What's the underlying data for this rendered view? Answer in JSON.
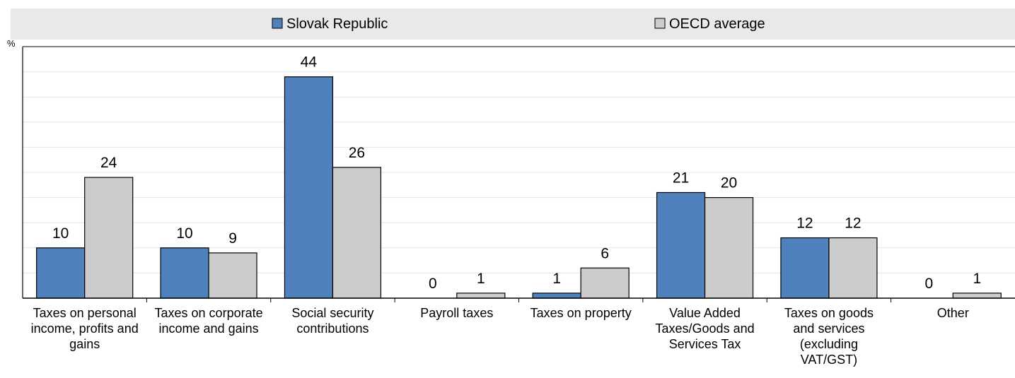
{
  "chart_data": {
    "type": "bar",
    "unit": "%",
    "categories": [
      "Taxes on personal income, profits and gains",
      "Taxes on corporate income and gains",
      "Social security contributions",
      "Payroll taxes",
      "Taxes on property",
      "Value Added Taxes/Goods and Services Tax",
      "Taxes on goods and services (excluding VAT/GST)",
      "Other"
    ],
    "category_label_lines": [
      [
        "Taxes on personal",
        "income, profits and",
        "gains"
      ],
      [
        "Taxes on corporate",
        "income and gains"
      ],
      [
        "Social security",
        "contributions"
      ],
      [
        "Payroll taxes"
      ],
      [
        "Taxes on property"
      ],
      [
        "Value Added",
        "Taxes/Goods and",
        "Services Tax"
      ],
      [
        "Taxes on goods",
        "and services",
        "(excluding",
        "VAT/GST)"
      ],
      [
        "Other"
      ]
    ],
    "series": [
      {
        "name": "Slovak Republic",
        "color": "#4f81bd",
        "values": [
          10,
          10,
          44,
          0,
          1,
          21,
          12,
          0
        ],
        "labels": [
          "10",
          "10",
          "44",
          "0",
          "1",
          "21",
          "12",
          "0"
        ]
      },
      {
        "name": "OECD average",
        "color": "#cccccc",
        "values": [
          24,
          9,
          26,
          1,
          6,
          20,
          12,
          1
        ],
        "labels": [
          "24",
          "9",
          "26",
          "1",
          "6",
          "20",
          "12",
          "1"
        ]
      }
    ],
    "ylim": [
      0,
      50
    ],
    "grid": true,
    "legend_position": "top"
  }
}
